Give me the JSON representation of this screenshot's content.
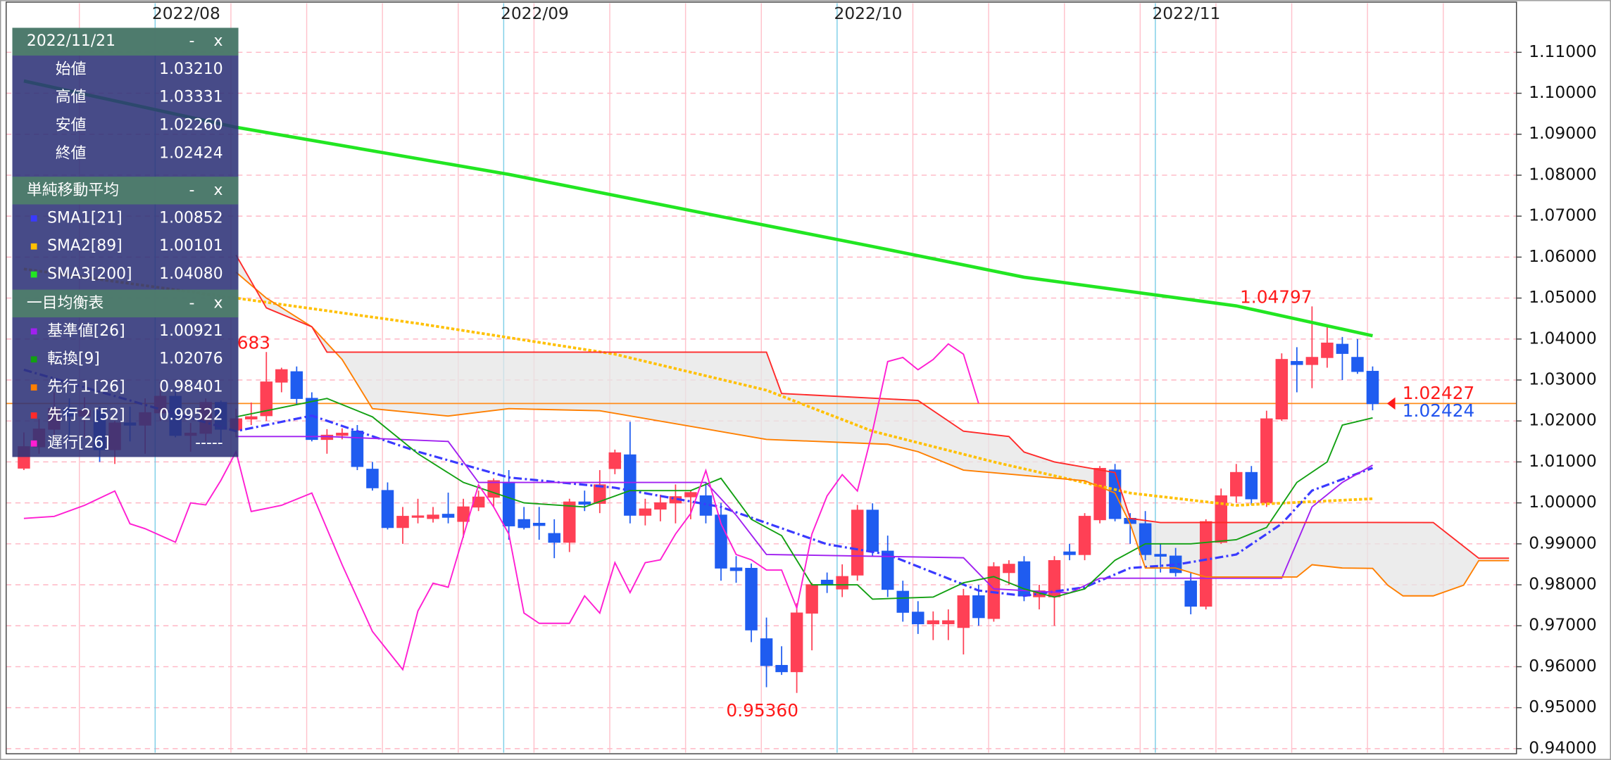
{
  "chart_data": {
    "type": "candlestick",
    "categories": [
      null,
      null,
      null,
      null,
      null,
      null,
      null,
      null,
      null,
      "2022/08",
      null,
      null,
      null,
      null,
      null,
      null,
      null,
      null,
      null,
      null,
      null,
      null,
      null,
      null,
      null,
      null,
      null,
      null,
      null,
      null,
      null,
      null,
      "2022/09",
      null,
      null,
      null,
      null,
      null,
      null,
      null,
      null,
      null,
      null,
      null,
      null,
      null,
      null,
      null,
      null,
      null,
      null,
      null,
      null,
      null,
      "2022/10",
      null,
      null,
      null,
      null,
      null,
      null,
      null,
      null,
      null,
      null,
      null,
      null,
      null,
      null,
      null,
      null,
      null,
      null,
      null,
      null,
      "2022/11",
      null,
      null,
      null,
      null,
      null,
      null,
      null,
      null,
      null,
      null,
      null,
      null,
      null,
      null,
      null,
      null,
      null,
      null,
      null,
      null,
      null,
      null,
      null
    ],
    "ohlc": [
      [
        1.0085,
        1.0172,
        1.008,
        1.0137
      ],
      [
        1.0137,
        1.0205,
        1.012,
        1.018
      ],
      [
        1.018,
        1.027,
        1.016,
        1.023
      ],
      [
        1.023,
        1.0255,
        1.015,
        1.0212
      ],
      [
        1.0212,
        1.0258,
        1.016,
        1.0225
      ],
      [
        1.0225,
        1.0235,
        1.01,
        1.013
      ],
      [
        1.013,
        1.02,
        1.0095,
        1.0195
      ],
      [
        1.0195,
        1.0235,
        1.015,
        1.019
      ],
      [
        1.019,
        1.0255,
        1.012,
        1.022
      ],
      [
        1.022,
        1.0295,
        1.02,
        1.026
      ],
      [
        1.026,
        1.028,
        1.016,
        1.0165
      ],
      [
        1.0165,
        1.0195,
        1.0125,
        1.017
      ],
      [
        1.017,
        1.0255,
        1.015,
        1.0245
      ],
      [
        1.0245,
        1.025,
        1.014,
        1.018
      ],
      [
        1.0178,
        1.023,
        1.016,
        1.0205
      ],
      [
        1.0205,
        1.0245,
        1.019,
        1.021
      ],
      [
        1.0213,
        1.03683,
        1.02,
        1.0295
      ],
      [
        1.0295,
        1.033,
        1.027,
        1.0325
      ],
      [
        1.032,
        1.0333,
        1.024,
        1.0255
      ],
      [
        1.0255,
        1.027,
        1.015,
        1.0155
      ],
      [
        1.0155,
        1.018,
        1.012,
        1.0165
      ],
      [
        1.0165,
        1.0182,
        1.0155,
        1.017
      ],
      [
        1.0175,
        1.019,
        1.008,
        1.0089
      ],
      [
        1.0082,
        1.01,
        1.003,
        1.0037
      ],
      [
        1.003,
        1.005,
        0.9935,
        0.994
      ],
      [
        0.994,
        0.999,
        0.99,
        0.9967
      ],
      [
        0.9965,
        1.001,
        0.995,
        0.9968
      ],
      [
        0.9962,
        0.999,
        0.9952,
        0.997
      ],
      [
        0.9972,
        1.0025,
        0.995,
        0.9965
      ],
      [
        0.9955,
        1.001,
        0.9915,
        0.999
      ],
      [
        0.999,
        1.003,
        0.998,
        1.0014
      ],
      [
        1.0014,
        1.006,
        0.999,
        1.0054
      ],
      [
        1.005,
        1.008,
        0.991,
        0.9944
      ],
      [
        0.9959,
        0.999,
        0.9935,
        0.994
      ],
      [
        0.995,
        0.999,
        0.991,
        0.9945
      ],
      [
        0.9925,
        0.996,
        0.9865,
        0.9904
      ],
      [
        0.9904,
        1.001,
        0.988,
        1.0002
      ],
      [
        1.0002,
        1.003,
        0.998,
        0.9997
      ],
      [
        0.9999,
        1.008,
        0.9975,
        1.0044
      ],
      [
        1.0084,
        1.013,
        1.007,
        1.0122
      ],
      [
        1.0117,
        1.0198,
        0.995,
        0.997
      ],
      [
        0.997,
        1.001,
        0.9945,
        0.9985
      ],
      [
        0.9985,
        1.002,
        0.9955,
        1.0
      ],
      [
        1.0,
        1.0045,
        0.995,
        1.0015
      ],
      [
        1.0015,
        1.003,
        0.996,
        1.0025
      ],
      [
        1.0017,
        1.005,
        0.995,
        0.997
      ],
      [
        0.997,
        1.0,
        0.981,
        0.9841
      ],
      [
        0.9841,
        0.987,
        0.9805,
        0.9835
      ],
      [
        0.984,
        0.9852,
        0.966,
        0.969
      ],
      [
        0.9668,
        0.972,
        0.955,
        0.9603
      ],
      [
        0.9603,
        0.965,
        0.958,
        0.9588
      ],
      [
        0.9588,
        0.9755,
        0.9536,
        0.9731
      ],
      [
        0.9731,
        0.9805,
        0.964,
        0.98
      ],
      [
        0.9811,
        0.983,
        0.978,
        0.98
      ],
      [
        0.979,
        0.985,
        0.977,
        0.982
      ],
      [
        0.9824,
        0.9995,
        0.981,
        0.9982
      ],
      [
        0.9982,
        0.9999,
        0.987,
        0.9882
      ],
      [
        0.9882,
        0.992,
        0.977,
        0.9789
      ],
      [
        0.9784,
        0.981,
        0.971,
        0.9733
      ],
      [
        0.9733,
        0.976,
        0.968,
        0.9705
      ],
      [
        0.9705,
        0.9735,
        0.9665,
        0.9712
      ],
      [
        0.9705,
        0.974,
        0.9665,
        0.9712
      ],
      [
        0.9696,
        0.979,
        0.963,
        0.9773
      ],
      [
        0.9773,
        0.98,
        0.97,
        0.972
      ],
      [
        0.9718,
        0.9855,
        0.971,
        0.9844
      ],
      [
        0.983,
        0.986,
        0.98,
        0.985
      ],
      [
        0.9856,
        0.987,
        0.976,
        0.9773
      ],
      [
        0.9771,
        0.98,
        0.974,
        0.9785
      ],
      [
        0.9771,
        0.987,
        0.97,
        0.9859
      ],
      [
        0.988,
        0.99,
        0.986,
        0.9874
      ],
      [
        0.9874,
        0.9975,
        0.986,
        0.9967
      ],
      [
        0.9959,
        1.009,
        0.995,
        1.0084
      ],
      [
        1.008,
        1.0095,
        0.9955,
        0.9962
      ],
      [
        0.9962,
        0.9975,
        0.99,
        0.995
      ],
      [
        0.9949,
        0.998,
        0.986,
        0.9874
      ],
      [
        0.9874,
        0.99,
        0.983,
        0.987
      ],
      [
        0.987,
        0.989,
        0.982,
        0.983
      ],
      [
        0.9809,
        0.983,
        0.9728,
        0.9748
      ],
      [
        0.9748,
        0.996,
        0.974,
        0.9954
      ],
      [
        0.9904,
        1.0035,
        0.99,
        1.0017
      ],
      [
        1.0017,
        1.0095,
        1.0,
        1.0074
      ],
      [
        1.0074,
        1.009,
        0.9995,
        1.001
      ],
      [
        1.0,
        1.0225,
        0.999,
        1.0205
      ],
      [
        1.0205,
        1.0365,
        1.02,
        1.035
      ],
      [
        1.0345,
        1.038,
        1.027,
        1.0338
      ],
      [
        1.0338,
        1.04797,
        1.028,
        1.0355
      ],
      [
        1.0355,
        1.0435,
        1.033,
        1.039
      ],
      [
        1.0387,
        1.0405,
        1.03,
        1.0365
      ],
      [
        1.0355,
        1.04,
        1.0315,
        1.0321
      ],
      [
        1.0321,
        1.03331,
        1.0226,
        1.02424
      ]
    ],
    "up_color": "#ff4055",
    "down_color": "#1f5cf0",
    "series": [
      {
        "color": "#3a3aff",
        "style": "dash-dot",
        "x": [
          0,
          14,
          19,
          26,
          32,
          39,
          46,
          53,
          57,
          63,
          66,
          70,
          73,
          76,
          80,
          83,
          85,
          89
        ],
        "values": [
          1.0325,
          1.0175,
          1.0213,
          1.0125,
          1.0062,
          1.0037,
          0.999,
          0.9899,
          0.9874,
          0.9786,
          0.9773,
          0.9794,
          0.9841,
          0.9849,
          0.9874,
          0.9949,
          1.003,
          1.00852
        ]
      },
      {
        "color": "#ffc000",
        "style": "dotted",
        "x": [
          0,
          14,
          26,
          39,
          49,
          56,
          64,
          73,
          80,
          89
        ],
        "values": [
          1.0571,
          1.05,
          1.0438,
          1.0363,
          1.0275,
          1.0175,
          1.01,
          1.0024,
          0.9994,
          1.00101
        ]
      },
      {
        "color": "#22e622",
        "style": "thick",
        "x": [
          0,
          14,
          32,
          46,
          56,
          66,
          80,
          89
        ],
        "values": [
          1.103,
          1.0917,
          1.0802,
          1.0699,
          1.0626,
          1.0551,
          1.0481,
          1.0408
        ]
      },
      {
        "color": "#a020f0",
        "style": "solid",
        "x": [
          14,
          20,
          28,
          30,
          45,
          47,
          49,
          62,
          64,
          69,
          71,
          83,
          85,
          87,
          89
        ],
        "values": [
          1.0162,
          1.0162,
          1.015,
          1.005,
          1.005,
          0.997,
          0.9874,
          0.9866,
          0.979,
          0.978,
          0.9816,
          0.9816,
          0.999,
          1.005,
          1.00921
        ]
      },
      {
        "color": "#12a012",
        "style": "solid",
        "x": [
          14,
          20,
          23,
          26,
          29,
          33,
          37,
          40,
          44,
          46,
          48,
          50,
          52,
          55,
          56,
          60,
          62,
          64,
          66,
          68,
          70,
          72,
          74,
          77,
          80,
          82,
          84,
          86,
          87,
          89
        ],
        "values": [
          1.021,
          1.0255,
          1.021,
          1.012,
          1.005,
          1.0,
          0.999,
          1.003,
          1.003,
          1.006,
          0.996,
          0.992,
          0.98,
          0.98,
          0.9765,
          0.977,
          0.9805,
          0.982,
          0.979,
          0.977,
          0.979,
          0.986,
          0.99,
          0.99,
          0.991,
          0.994,
          1.005,
          1.01,
          1.019,
          1.02076
        ]
      },
      {
        "color": "#ff7f00",
        "style": "solid",
        "x": [
          14,
          16,
          19,
          21,
          23,
          28,
          32,
          38,
          49,
          57,
          59,
          62,
          70,
          72,
          73,
          74,
          76,
          78,
          84,
          85,
          87,
          89,
          90,
          91,
          93,
          95,
          96,
          98
        ],
        "values": [
          1.0563,
          1.05,
          1.043,
          1.035,
          1.023,
          1.0212,
          1.023,
          1.0225,
          1.0155,
          1.0143,
          1.0125,
          1.008,
          1.0054,
          1.0024,
          0.9949,
          0.9841,
          0.9841,
          0.9819,
          0.9819,
          0.9849,
          0.9841,
          0.98401,
          0.9799,
          0.9773,
          0.9773,
          0.9799,
          0.9859,
          0.9859
        ]
      },
      {
        "color": "#ff2a2a",
        "style": "solid",
        "x": [
          14,
          16,
          19,
          20,
          49,
          50,
          59,
          62,
          65,
          66,
          68,
          72,
          73,
          75,
          89,
          93,
          96,
          98
        ],
        "values": [
          1.0605,
          1.0476,
          1.043,
          1.0368,
          1.0368,
          1.0267,
          1.025,
          1.0175,
          1.0162,
          1.0124,
          1.01,
          1.0074,
          0.9962,
          0.9952,
          0.99522,
          0.9952,
          0.9865,
          0.9865
        ]
      },
      {
        "color": "#ff1ed2",
        "style": "solid",
        "x": [
          0,
          2,
          4,
          6,
          7,
          8,
          10,
          11,
          12,
          13,
          14,
          15,
          17,
          19,
          21,
          23,
          25,
          26,
          27,
          28,
          30,
          31,
          32,
          33,
          34,
          36,
          37,
          38,
          39,
          40,
          41,
          42,
          43,
          44,
          45,
          46,
          47,
          48,
          49,
          50,
          51,
          52,
          53,
          54,
          55,
          56,
          57,
          58,
          59,
          60,
          61,
          62,
          63
        ],
        "values": [
          0.9962,
          0.9967,
          0.9994,
          1.0029,
          0.9949,
          0.9937,
          0.9904,
          1.0,
          0.9995,
          1.0055,
          1.0125,
          0.9979,
          0.9994,
          1.0024,
          0.9849,
          0.9686,
          0.9593,
          0.9736,
          0.9804,
          0.9794,
          1.0044,
          0.999,
          0.9924,
          0.9731,
          0.9706,
          0.9706,
          0.9773,
          0.9731,
          0.9854,
          0.9781,
          0.9854,
          0.9861,
          0.9924,
          0.9974,
          1.0079,
          0.9949,
          0.9874,
          0.9861,
          0.9836,
          0.9836,
          0.9743,
          0.9924,
          1.0017,
          1.0069,
          1.0029,
          1.0175,
          1.0345,
          1.0355,
          1.0325,
          1.035,
          1.0388,
          1.0363,
          1.02424
        ]
      }
    ],
    "cloud_color": "#e6e6e6",
    "ylim": [
      0.939,
      1.122
    ],
    "yticks": [
      {
        "value": 1.11,
        "label": "1.11000"
      },
      {
        "value": 1.1,
        "label": "1.10000"
      },
      {
        "value": 1.09,
        "label": "1.09000"
      },
      {
        "value": 1.08,
        "label": "1.08000"
      },
      {
        "value": 1.07,
        "label": "1.07000"
      },
      {
        "value": 1.06,
        "label": "1.06000"
      },
      {
        "value": 1.05,
        "label": "1.05000"
      },
      {
        "value": 1.04,
        "label": "1.04000"
      },
      {
        "value": 1.03,
        "label": "1.03000"
      },
      {
        "value": 1.02,
        "label": "1.02000"
      },
      {
        "value": 1.01,
        "label": "1.01000"
      },
      {
        "value": 1.0,
        "label": "1.00000"
      },
      {
        "value": 0.99,
        "label": "0.99000"
      },
      {
        "value": 0.98,
        "label": "0.98000"
      },
      {
        "value": 0.97,
        "label": "0.97000"
      },
      {
        "value": 0.96,
        "label": "0.96000"
      },
      {
        "value": 0.95,
        "label": "0.95000"
      },
      {
        "value": 0.94,
        "label": "0.94000"
      }
    ],
    "grid": true,
    "annotations": [
      {
        "label": "1.04797",
        "value": 1.04797
      },
      {
        "label": "0.95360",
        "value": 0.9536
      },
      {
        "label": "683",
        "value": 1.03683
      }
    ],
    "annotation_color": "#ff1a1a",
    "price_line": {
      "value": 1.02427,
      "color": "#ff8c1a"
    },
    "price_labels": [
      {
        "label": "1.02427",
        "value": 1.02427,
        "color": "#ff1a1a"
      },
      {
        "label": "1.02424",
        "value": 1.02424,
        "color": "#2255ee"
      }
    ],
    "panel_controls": [
      "-",
      "x"
    ],
    "info_panel": [
      {
        "title": "2022/11/21",
        "rows": [
          [
            "始値",
            "1.03210"
          ],
          [
            "高値",
            "1.03331"
          ],
          [
            "安値",
            "1.02260"
          ],
          [
            "終値",
            "1.02424"
          ]
        ]
      },
      {
        "title": "単純移動平均",
        "rows": [
          [
            "SMA1[21]",
            "1.00852"
          ],
          [
            "SMA2[89]",
            "1.00101"
          ],
          [
            "SMA3[200]",
            "1.04080"
          ]
        ]
      },
      {
        "title": "一目均衡表",
        "rows": [
          [
            "基準値[26]",
            "1.00921"
          ],
          [
            "転換[9]",
            "1.02076"
          ],
          [
            "先行１[26]",
            "0.98401"
          ],
          [
            "先行２[52]",
            "0.99522"
          ],
          [
            "遅行[26]",
            "-----"
          ]
        ]
      }
    ]
  }
}
